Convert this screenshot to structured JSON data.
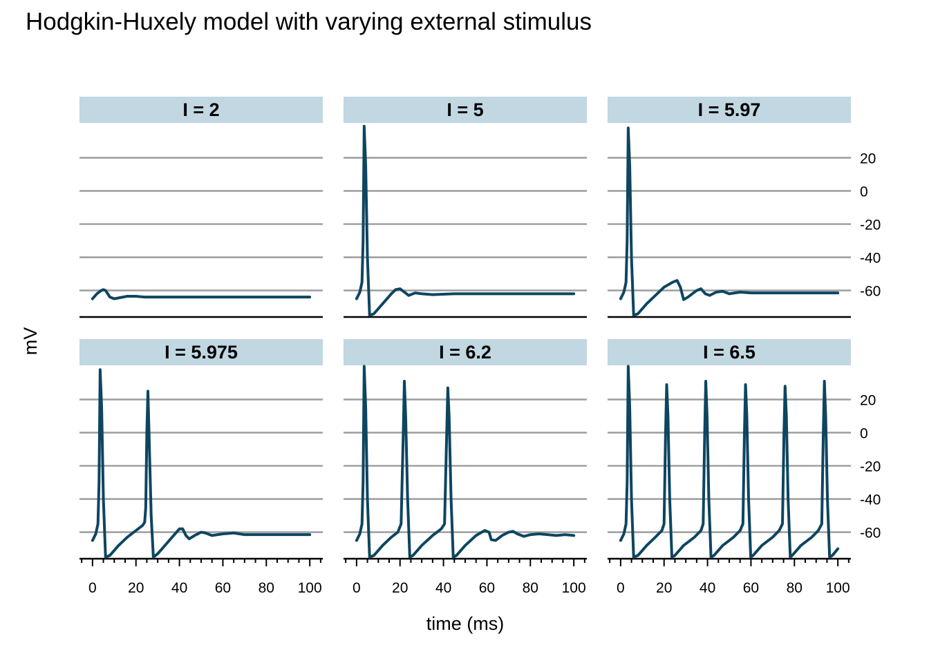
{
  "title": "Hodgkin-Huxely model with varying external stimulus",
  "colors": {
    "line": "#0e4560",
    "strip_fill": "#c1d7e2",
    "grid": "#a0a0a0",
    "axis": "#000000"
  },
  "chart_data": {
    "type": "line",
    "title": "Hodgkin-Huxely model with varying external stimulus",
    "xlabel": "time (ms)",
    "ylabel": "mV",
    "xlim": [
      -6,
      106
    ],
    "ylim": [
      -76,
      41
    ],
    "x_ticks": [
      0,
      20,
      40,
      60,
      80,
      100
    ],
    "y_ticks": [
      -60,
      -40,
      -20,
      0,
      20
    ],
    "x_minor_ticks": [
      -5,
      5,
      10,
      15,
      25,
      30,
      35,
      45,
      50,
      55,
      65,
      70,
      75,
      85,
      90,
      95,
      105
    ],
    "grid": "horizontal major",
    "y_axis_position": "right",
    "layout": "facets 2 rows x 3 columns",
    "panels": [
      {
        "label": "I = 2",
        "points": [
          [
            0,
            -65
          ],
          [
            2,
            -62
          ],
          [
            4,
            -60
          ],
          [
            5,
            -59.5
          ],
          [
            6,
            -60
          ],
          [
            7,
            -62
          ],
          [
            8,
            -64
          ],
          [
            10,
            -65
          ],
          [
            12,
            -64.5
          ],
          [
            16,
            -63.5
          ],
          [
            20,
            -63.5
          ],
          [
            24,
            -64
          ],
          [
            30,
            -64
          ],
          [
            40,
            -64
          ],
          [
            60,
            -64
          ],
          [
            80,
            -64
          ],
          [
            100,
            -64
          ]
        ]
      },
      {
        "label": "I = 5",
        "points": [
          [
            0,
            -65
          ],
          [
            1.5,
            -61
          ],
          [
            2.5,
            -55
          ],
          [
            3,
            -30
          ],
          [
            3.5,
            39
          ],
          [
            4.2,
            15
          ],
          [
            5,
            -40
          ],
          [
            6,
            -75
          ],
          [
            8,
            -74
          ],
          [
            12,
            -68
          ],
          [
            16,
            -62
          ],
          [
            18,
            -59.5
          ],
          [
            20,
            -59
          ],
          [
            22,
            -61
          ],
          [
            24,
            -63
          ],
          [
            27,
            -61.5
          ],
          [
            30,
            -62
          ],
          [
            35,
            -62.5
          ],
          [
            45,
            -62
          ],
          [
            60,
            -62
          ],
          [
            80,
            -62
          ],
          [
            100,
            -62
          ]
        ]
      },
      {
        "label": "I = 5.97",
        "points": [
          [
            0,
            -65
          ],
          [
            1.5,
            -61
          ],
          [
            2.5,
            -55
          ],
          [
            3,
            -30
          ],
          [
            3.5,
            38
          ],
          [
            4.2,
            15
          ],
          [
            5,
            -40
          ],
          [
            6,
            -75
          ],
          [
            8,
            -74
          ],
          [
            12,
            -68
          ],
          [
            16,
            -63
          ],
          [
            20,
            -58
          ],
          [
            24,
            -55
          ],
          [
            26,
            -54
          ],
          [
            27.5,
            -58
          ],
          [
            29,
            -65.5
          ],
          [
            31,
            -64
          ],
          [
            35,
            -60
          ],
          [
            37,
            -59
          ],
          [
            39,
            -62
          ],
          [
            41,
            -63
          ],
          [
            44,
            -61
          ],
          [
            47,
            -60.5
          ],
          [
            50,
            -62
          ],
          [
            55,
            -61
          ],
          [
            60,
            -61.5
          ],
          [
            70,
            -61.5
          ],
          [
            80,
            -61.5
          ],
          [
            100,
            -61.5
          ]
        ]
      },
      {
        "label": "I = 5.975",
        "points": [
          [
            0,
            -65
          ],
          [
            1.5,
            -61
          ],
          [
            2.5,
            -55
          ],
          [
            3,
            -30
          ],
          [
            3.5,
            38
          ],
          [
            4.2,
            15
          ],
          [
            5,
            -40
          ],
          [
            6,
            -75
          ],
          [
            8,
            -74
          ],
          [
            12,
            -68
          ],
          [
            16,
            -63
          ],
          [
            20,
            -59
          ],
          [
            23,
            -56
          ],
          [
            24,
            -54
          ],
          [
            24.5,
            -45
          ],
          [
            25,
            0
          ],
          [
            25.5,
            25
          ],
          [
            26,
            0
          ],
          [
            27,
            -50
          ],
          [
            28,
            -75
          ],
          [
            30,
            -73
          ],
          [
            34,
            -67
          ],
          [
            38,
            -61
          ],
          [
            40,
            -58
          ],
          [
            41.5,
            -58
          ],
          [
            43,
            -62
          ],
          [
            44.5,
            -64
          ],
          [
            47,
            -62
          ],
          [
            50,
            -60
          ],
          [
            52,
            -60.5
          ],
          [
            55,
            -62
          ],
          [
            60,
            -61
          ],
          [
            65,
            -60.5
          ],
          [
            70,
            -61.5
          ],
          [
            80,
            -61.5
          ],
          [
            100,
            -61.5
          ]
        ]
      },
      {
        "label": "I = 6.2",
        "points": [
          [
            0,
            -65
          ],
          [
            1.5,
            -61
          ],
          [
            2.5,
            -55
          ],
          [
            3,
            -30
          ],
          [
            3.5,
            40
          ],
          [
            4.2,
            15
          ],
          [
            5,
            -40
          ],
          [
            6,
            -75
          ],
          [
            8,
            -74
          ],
          [
            12,
            -68
          ],
          [
            16,
            -63
          ],
          [
            19,
            -60
          ],
          [
            20.5,
            -55
          ],
          [
            21.5,
            0
          ],
          [
            22,
            31
          ],
          [
            22.6,
            10
          ],
          [
            23.5,
            -40
          ],
          [
            24.5,
            -75
          ],
          [
            26,
            -74
          ],
          [
            30,
            -68
          ],
          [
            35,
            -62
          ],
          [
            39,
            -58
          ],
          [
            40.5,
            -55
          ],
          [
            41.5,
            0
          ],
          [
            42,
            27
          ],
          [
            42.6,
            10
          ],
          [
            43.5,
            -40
          ],
          [
            44.5,
            -75
          ],
          [
            46,
            -74
          ],
          [
            50,
            -68
          ],
          [
            55,
            -62
          ],
          [
            59,
            -59
          ],
          [
            61,
            -60
          ],
          [
            62,
            -64.5
          ],
          [
            64,
            -65
          ],
          [
            67,
            -62
          ],
          [
            70,
            -60
          ],
          [
            72,
            -59.5
          ],
          [
            74,
            -61
          ],
          [
            77,
            -62.5
          ],
          [
            80,
            -61.5
          ],
          [
            84,
            -61
          ],
          [
            88,
            -61.5
          ],
          [
            92,
            -62
          ],
          [
            96,
            -61.5
          ],
          [
            100,
            -62
          ]
        ]
      },
      {
        "label": "I = 6.5",
        "points": [
          [
            0,
            -65
          ],
          [
            1.5,
            -61
          ],
          [
            2.5,
            -55
          ],
          [
            3,
            -30
          ],
          [
            3.5,
            40
          ],
          [
            4.2,
            15
          ],
          [
            5,
            -40
          ],
          [
            6,
            -75
          ],
          [
            8,
            -74
          ],
          [
            12,
            -68
          ],
          [
            16,
            -63
          ],
          [
            19,
            -59
          ],
          [
            20,
            -55
          ],
          [
            20.7,
            0
          ],
          [
            21.2,
            29
          ],
          [
            21.8,
            10
          ],
          [
            22.6,
            -40
          ],
          [
            23.6,
            -75
          ],
          [
            25,
            -74
          ],
          [
            29,
            -68
          ],
          [
            34,
            -63
          ],
          [
            37,
            -59
          ],
          [
            38,
            -55
          ],
          [
            38.7,
            0
          ],
          [
            39.2,
            31
          ],
          [
            39.8,
            10
          ],
          [
            40.6,
            -40
          ],
          [
            41.6,
            -75
          ],
          [
            43,
            -74
          ],
          [
            47,
            -68
          ],
          [
            52,
            -63
          ],
          [
            55,
            -59
          ],
          [
            56.3,
            -55
          ],
          [
            57,
            0
          ],
          [
            57.5,
            29
          ],
          [
            58.1,
            10
          ],
          [
            58.9,
            -40
          ],
          [
            59.9,
            -75
          ],
          [
            61,
            -74
          ],
          [
            65,
            -68
          ],
          [
            70,
            -63
          ],
          [
            73,
            -59
          ],
          [
            74.5,
            -55
          ],
          [
            75.2,
            0
          ],
          [
            75.7,
            28
          ],
          [
            76.3,
            10
          ],
          [
            77.1,
            -40
          ],
          [
            78.1,
            -75
          ],
          [
            79,
            -74
          ],
          [
            83,
            -68
          ],
          [
            88,
            -63
          ],
          [
            91,
            -59
          ],
          [
            92.6,
            -55
          ],
          [
            93.3,
            0
          ],
          [
            93.8,
            31
          ],
          [
            94.4,
            10
          ],
          [
            95.2,
            -40
          ],
          [
            96.2,
            -75
          ],
          [
            97.5,
            -74
          ],
          [
            100,
            -70
          ]
        ]
      }
    ]
  }
}
